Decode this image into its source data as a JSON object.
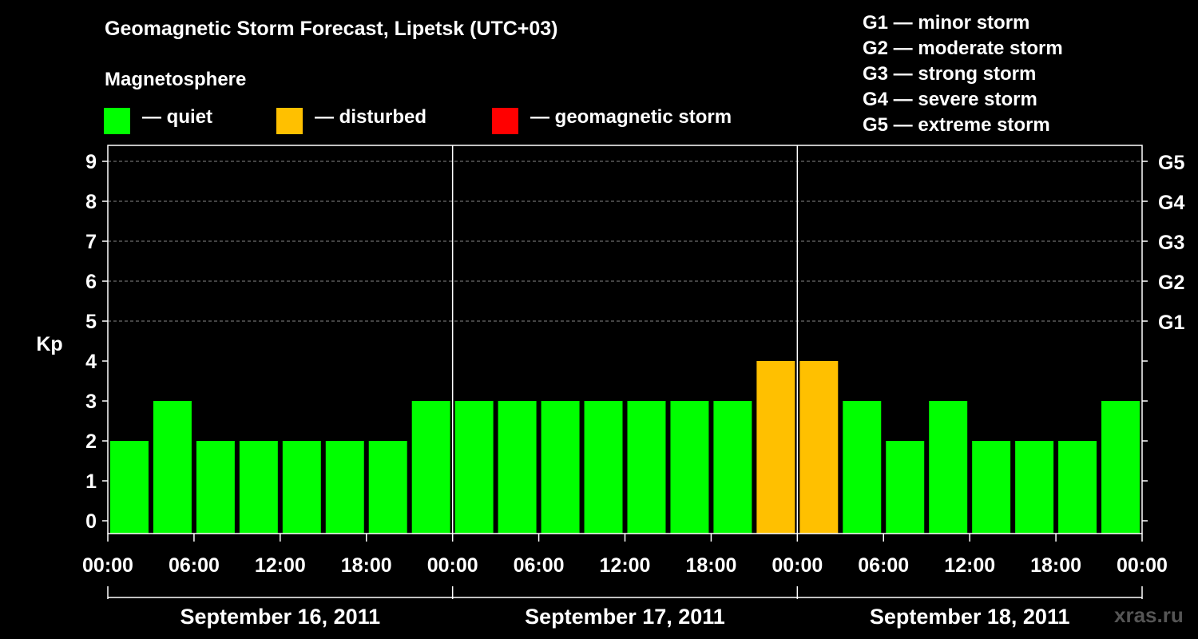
{
  "title": "Geomagnetic Storm Forecast, Lipetsk (UTC+03)",
  "legend": {
    "heading": "Magnetosphere",
    "items": [
      {
        "label": "— quiet",
        "color": "#00FF00"
      },
      {
        "label": "— disturbed",
        "color": "#FFC000"
      },
      {
        "label": "— geomagnetic storm",
        "color": "#FF0000"
      }
    ]
  },
  "g_scale": [
    {
      "level": "G1",
      "text": "G1 — minor storm"
    },
    {
      "level": "G2",
      "text": "G2 — moderate storm"
    },
    {
      "level": "G3",
      "text": "G3 — strong storm"
    },
    {
      "level": "G4",
      "text": "G4 — severe storm"
    },
    {
      "level": "G5",
      "text": "G5 — extreme storm"
    }
  ],
  "watermark": "xras.ru",
  "chart_data": {
    "type": "bar",
    "ylabel": "Kp",
    "ylim": [
      0,
      9
    ],
    "grid": true,
    "yticks": [
      "0",
      "1",
      "2",
      "3",
      "4",
      "5",
      "6",
      "7",
      "8",
      "9"
    ],
    "right_axis": [
      {
        "kp": 5,
        "label": "G1"
      },
      {
        "kp": 6,
        "label": "G2"
      },
      {
        "kp": 7,
        "label": "G3"
      },
      {
        "kp": 8,
        "label": "G4"
      },
      {
        "kp": 9,
        "label": "G5"
      }
    ],
    "xtick_labels": [
      "00:00",
      "06:00",
      "12:00",
      "18:00",
      "00:00",
      "06:00",
      "12:00",
      "18:00",
      "00:00",
      "06:00",
      "12:00",
      "18:00",
      "00:00"
    ],
    "days": [
      "September 16, 2011",
      "September 17, 2011",
      "September 18, 2011"
    ],
    "values": [
      2,
      3,
      2,
      2,
      2,
      2,
      2,
      3,
      3,
      3,
      3,
      3,
      3,
      3,
      3,
      4,
      4,
      3,
      2,
      3,
      2,
      2,
      2,
      3
    ],
    "thresholds": {
      "disturbed": 4,
      "storm": 5
    }
  }
}
